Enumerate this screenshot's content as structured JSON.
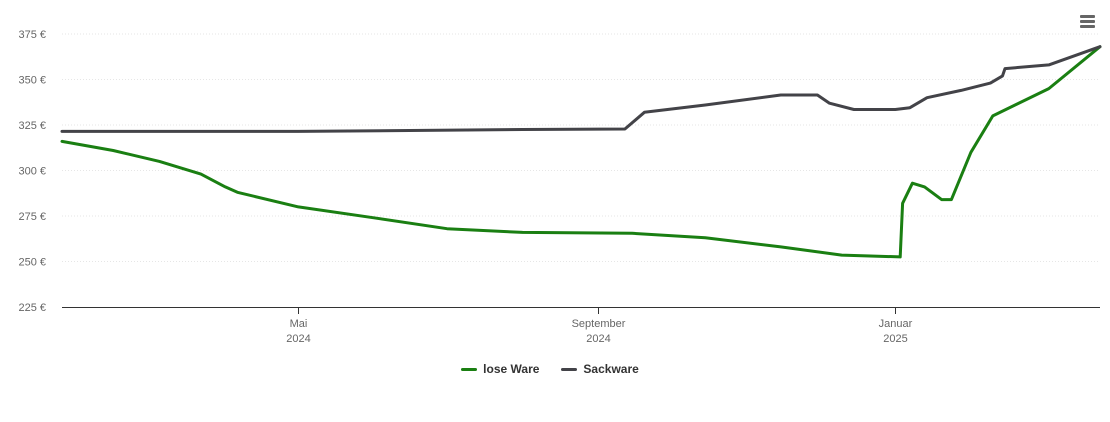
{
  "chart_data": {
    "type": "line",
    "title": "",
    "xlabel": "",
    "ylabel": "",
    "ylim": [
      225,
      375
    ],
    "y_ticks": [
      {
        "value": 375,
        "label": "375 €"
      },
      {
        "value": 350,
        "label": "350 €"
      },
      {
        "value": 325,
        "label": "325 €"
      },
      {
        "value": 300,
        "label": "300 €"
      },
      {
        "value": 275,
        "label": "275 €"
      },
      {
        "value": 250,
        "label": "250 €"
      },
      {
        "value": 225,
        "label": "225 €"
      }
    ],
    "x_range": [
      "2024-01-25",
      "2025-03-26"
    ],
    "x_ticks": [
      {
        "date": "2024-05-01",
        "month": "Mai",
        "year": "2024"
      },
      {
        "date": "2024-09-01",
        "month": "September",
        "year": "2024"
      },
      {
        "date": "2025-01-01",
        "month": "Januar",
        "year": "2025"
      }
    ],
    "grid": true,
    "legend_position": "bottom-center",
    "series": [
      {
        "name": "lose Ware",
        "color": "#1a7f12",
        "points": [
          [
            "2024-01-25",
            316
          ],
          [
            "2024-02-15",
            311
          ],
          [
            "2024-03-05",
            305
          ],
          [
            "2024-03-22",
            298
          ],
          [
            "2024-04-01",
            291
          ],
          [
            "2024-04-06",
            288
          ],
          [
            "2024-05-01",
            280
          ],
          [
            "2024-06-01",
            274
          ],
          [
            "2024-07-01",
            268
          ],
          [
            "2024-08-01",
            266
          ],
          [
            "2024-09-15",
            265.5
          ],
          [
            "2024-10-15",
            263
          ],
          [
            "2024-11-15",
            258
          ],
          [
            "2024-12-10",
            253.5
          ],
          [
            "2025-01-03",
            252.5
          ],
          [
            "2025-01-04",
            282
          ],
          [
            "2025-01-08",
            293
          ],
          [
            "2025-01-13",
            291
          ],
          [
            "2025-01-20",
            284
          ],
          [
            "2025-01-24",
            284
          ],
          [
            "2025-02-01",
            310
          ],
          [
            "2025-02-10",
            330
          ],
          [
            "2025-03-05",
            345
          ],
          [
            "2025-03-26",
            368
          ]
        ]
      },
      {
        "name": "Sackware",
        "color": "#434348",
        "points": [
          [
            "2024-01-25",
            321.5
          ],
          [
            "2024-05-01",
            321.5
          ],
          [
            "2024-08-01",
            322.5
          ],
          [
            "2024-09-12",
            322.8
          ],
          [
            "2024-09-20",
            332
          ],
          [
            "2024-10-15",
            336
          ],
          [
            "2024-11-15",
            341.5
          ],
          [
            "2024-11-30",
            341.5
          ],
          [
            "2024-12-05",
            337
          ],
          [
            "2024-12-15",
            333.5
          ],
          [
            "2025-01-01",
            333.5
          ],
          [
            "2025-01-07",
            334.5
          ],
          [
            "2025-01-14",
            340
          ],
          [
            "2025-01-28",
            344
          ],
          [
            "2025-02-09",
            348
          ],
          [
            "2025-02-14",
            352
          ],
          [
            "2025-02-15",
            356
          ],
          [
            "2025-03-05",
            358
          ],
          [
            "2025-03-26",
            368
          ]
        ]
      }
    ]
  }
}
